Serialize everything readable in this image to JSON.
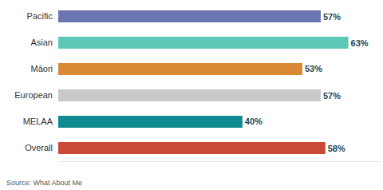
{
  "chart_data": {
    "type": "bar",
    "orientation": "horizontal",
    "categories": [
      "Pacific",
      "Asian",
      "Māori",
      "European",
      "MELAA",
      "Overall"
    ],
    "values": [
      57,
      63,
      53,
      57,
      40,
      58
    ],
    "value_labels": [
      "57%",
      "63%",
      "53%",
      "57%",
      "40%",
      "58%"
    ],
    "colors": [
      "#6b75b0",
      "#5ec8b8",
      "#d98934",
      "#c9c9c9",
      "#0f8a90",
      "#cb4a37"
    ],
    "xlim": [
      0,
      70
    ],
    "data_labels": true,
    "tick_labels": "y",
    "grid": false,
    "source": "Source: What About Me"
  }
}
